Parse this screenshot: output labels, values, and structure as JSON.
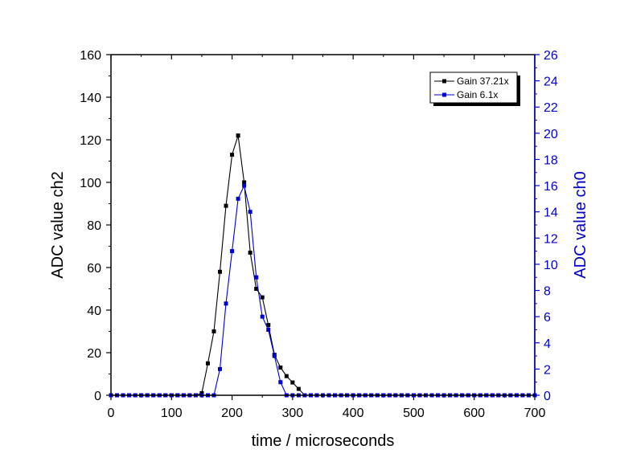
{
  "chart_data": {
    "type": "line",
    "title": "",
    "xlabel": "time / microseconds",
    "ylabel_left": "ADC value ch2",
    "ylabel_right": "ADC value ch0",
    "xlim": [
      0,
      700
    ],
    "ylim_left": [
      0,
      160
    ],
    "ylim_right": [
      0,
      26
    ],
    "x_ticks": [
      "0",
      "100",
      "200",
      "300",
      "400",
      "500",
      "600",
      "700"
    ],
    "y_left_ticks": [
      "0",
      "20",
      "40",
      "60",
      "80",
      "100",
      "120",
      "140",
      "160"
    ],
    "y_right_ticks": [
      "0",
      "2",
      "4",
      "6",
      "8",
      "10",
      "12",
      "14",
      "16",
      "18",
      "20",
      "22",
      "24",
      "26"
    ],
    "grid": false,
    "legend_position": "top-right",
    "colors": {
      "left_axis": "#000000",
      "right_axis": "#0000cc"
    },
    "series": [
      {
        "name": "Gain 37.21x",
        "axis": "left",
        "color": "#000000",
        "marker": "square",
        "x": [
          0,
          10,
          20,
          30,
          40,
          50,
          60,
          70,
          80,
          90,
          100,
          110,
          120,
          130,
          140,
          150,
          160,
          170,
          180,
          190,
          200,
          210,
          220,
          230,
          240,
          250,
          260,
          270,
          280,
          290,
          300,
          310,
          320,
          330,
          340,
          350,
          360,
          370,
          380,
          390,
          400,
          410,
          420,
          430,
          440,
          450,
          460,
          470,
          480,
          490,
          500,
          510,
          520,
          530,
          540,
          550,
          560,
          570,
          580,
          590,
          600,
          610,
          620,
          630,
          640,
          650,
          660,
          670,
          680,
          690,
          700
        ],
        "y": [
          0,
          0,
          0,
          0,
          0,
          0,
          0,
          0,
          0,
          0,
          0,
          0,
          0,
          0,
          0,
          1,
          15,
          30,
          58,
          89,
          113,
          122,
          100,
          67,
          50,
          46,
          33,
          19,
          13,
          9,
          6,
          3,
          0,
          0,
          0,
          0,
          0,
          0,
          0,
          0,
          0,
          0,
          0,
          0,
          0,
          0,
          0,
          0,
          0,
          0,
          0,
          0,
          0,
          0,
          0,
          0,
          0,
          0,
          0,
          0,
          0,
          0,
          0,
          0,
          0,
          0,
          0,
          0,
          0,
          0,
          0
        ],
        "y_override_note": ""
      },
      {
        "name": "Gain 6.1x",
        "axis": "right",
        "color": "#0000cc",
        "marker": "square",
        "x": [
          0,
          10,
          20,
          30,
          40,
          50,
          60,
          70,
          80,
          90,
          100,
          110,
          120,
          130,
          140,
          150,
          160,
          170,
          180,
          190,
          200,
          210,
          220,
          230,
          240,
          250,
          260,
          270,
          280,
          290,
          300,
          310,
          320,
          330,
          340,
          350,
          360,
          370,
          380,
          390,
          400,
          410,
          420,
          430,
          440,
          450,
          460,
          470,
          480,
          490,
          500,
          510,
          520,
          530,
          540,
          550,
          560,
          570,
          580,
          590,
          600,
          610,
          620,
          630,
          640,
          650,
          660,
          670,
          680,
          690,
          700
        ],
        "y": [
          0,
          0,
          0,
          0,
          0,
          0,
          0,
          0,
          0,
          0,
          0,
          0,
          0,
          0,
          0,
          0,
          0,
          0,
          2,
          7,
          11,
          15,
          16,
          14,
          9,
          6,
          5,
          3,
          1,
          0,
          0,
          0,
          0,
          0,
          0,
          0,
          0,
          0,
          0,
          0,
          0,
          0,
          0,
          0,
          0,
          0,
          0,
          0,
          0,
          0,
          0,
          0,
          0,
          0,
          0,
          0,
          0,
          0,
          0,
          0,
          0,
          0,
          0,
          0,
          0,
          0,
          0,
          0,
          0,
          0,
          0
        ]
      }
    ]
  }
}
